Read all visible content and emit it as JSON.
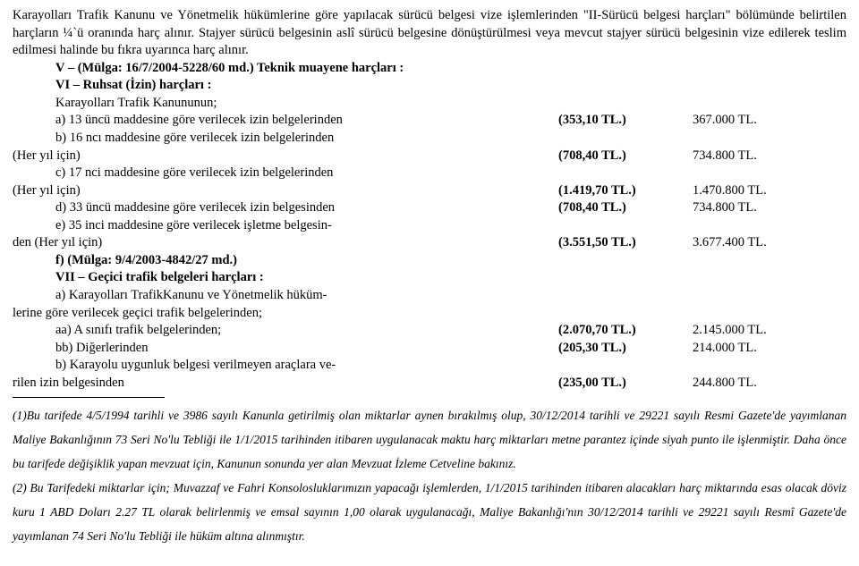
{
  "intro1": "Karayolları Trafik Kanunu ve Yönetmelik hükümlerine göre yapılacak sürücü belgesi vize işlemlerinden \"II-Sürücü belgesi harçları\" bölümünde belirtilen harçların ¼`ü oranında harç alınır. Stajyer sürücü belgesinin aslî sürücü belgesine dönüştürülmesi veya mevcut stajyer sürücü belgesinin vize edilerek teslim edilmesi halinde bu fıkra uyarınca harç alınır.",
  "lineV": "V – (Mülga: 16/7/2004-5228/60 md.) Teknik muayene harçları :",
  "lineVI": "VI – Ruhsat (İzin) harçları :",
  "lineVI_sub": "Karayolları Trafik Kanununun;",
  "rows": {
    "a": {
      "t": "a) 13 üncü maddesine göre verilecek izin belgelerinden",
      "v": "(353,10 TL.)",
      "r": "367.000 TL."
    },
    "b_l1": "b) 16 ncı maddesine göre verilecek izin belgelerinden",
    "b_l2": {
      "t": "(Her yıl için)",
      "v": "(708,40 TL.)",
      "r": "734.800 TL."
    },
    "c_l1": "c) 17 nci maddesine göre verilecek izin belgelerinden",
    "c_l2": {
      "t": "(Her yıl için)",
      "v": "(1.419,70 TL.)",
      "r": "1.470.800 TL."
    },
    "d": {
      "t": "d) 33 üncü maddesine göre verilecek izin belgesinden",
      "v": "(708,40 TL.)",
      "r": "734.800 TL."
    },
    "e_l1": "e) 35 inci maddesine göre verilecek işletme belgesin-",
    "e_l2": {
      "t": "den (Her yıl için)",
      "v": "(3.551,50 TL.)",
      "r": "3.677.400 TL."
    },
    "f": "f) (Mülga: 9/4/2003-4842/27 md.)",
    "VII": "VII – Geçici trafik belgeleri harçları :",
    "VII_a1": "a) Karayolları TrafikKanunu ve Yönetmelik hüküm-",
    "VII_a2": "lerine göre verilecek geçici trafik belgelerinden;",
    "aa": {
      "t": "aa) A sınıfı trafik belgelerinden;",
      "v": "(2.070,70 TL.)",
      "r": "2.145.000 TL."
    },
    "bb": {
      "t": "bb) Diğerlerinden",
      "v": "(205,30 TL.)",
      "r": "214.000 TL."
    },
    "b2_l1": "b) Karayolu uygunluk belgesi verilmeyen araçlara ve-",
    "b2_l2": {
      "t": "rilen izin belgesinden",
      "v": "(235,00 TL.)",
      "r": "244.800 TL."
    }
  },
  "footnotes": {
    "f1": "(1)Bu tarifede 4/5/1994 tarihli ve 3986 sayılı Kanunla getirilmiş olan miktarlar aynen bırakılmış olup, 30/12/2014 tarihli ve 29221 sayılı Resmi Gazete'de yayımlanan Maliye Bakanlığının 73 Seri No'lu Tebliği ile 1/1/2015 tarihinden itibaren uygulanacak maktu harç miktarları  metne parantez içinde siyah punto ile işlenmiştir. Daha önce bu tarifede değişiklik yapan mevzuat için, Kanunun sonunda yer alan Mevzuat İzleme Cetveline bakınız.",
    "f2": "(2) Bu Tarifedeki miktarlar için;  Muvazzaf ve Fahri Konsolosluklarımızın yapacağı işlemlerden, 1/1/2015  tarihinden itibaren alacakları harç miktarında esas olacak döviz kuru 1 ABD Doları 2.27 TL olarak belirlenmiş ve emsal sayının 1,00 olarak uygulanacağı, Maliye Bakanlığı'nın 30/12/2014 tarihli ve 29221 sayılı Resmî Gazete'de yayımlanan  74 Seri No'lu Tebliği  ile hüküm altına alınmıştır."
  }
}
